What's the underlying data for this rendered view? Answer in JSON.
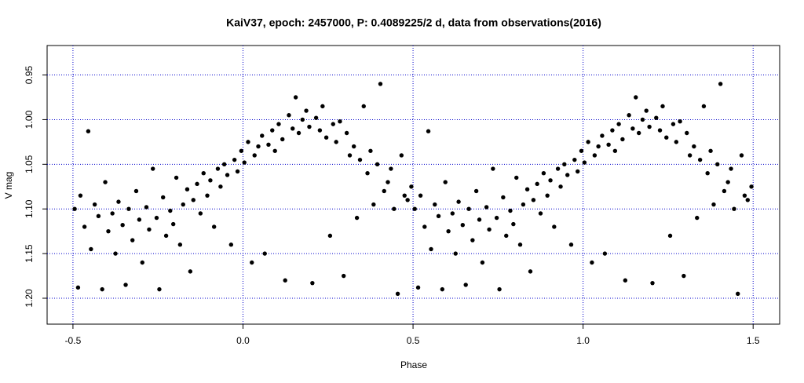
{
  "chart_data": {
    "type": "scatter",
    "title": "KaiV37, epoch: 2457000, P: 0.4089225/2 d, data from observations(2016)",
    "xlabel": "Phase",
    "ylabel": "V mag",
    "xlim": [
      -0.576,
      1.578
    ],
    "ylim": [
      1.229,
      0.917
    ],
    "xticks": [
      -0.5,
      {
        "value": 0,
        "label": "0.0"
      },
      0.5,
      {
        "value": 1,
        "label": "1.0"
      },
      1.5
    ],
    "yticks": [
      0.95,
      {
        "value": 1,
        "label": "1.00"
      },
      1.05,
      {
        "value": 1.1,
        "label": "1.10"
      },
      1.15,
      {
        "value": 1.2,
        "label": "1.20"
      }
    ],
    "grid": true,
    "grid_color": "#0000cc",
    "color": "#000000",
    "x": [
      -0.495,
      -0.485,
      -0.478,
      -0.466,
      -0.455,
      -0.447,
      -0.436,
      -0.425,
      -0.414,
      -0.405,
      -0.396,
      -0.384,
      -0.375,
      -0.366,
      -0.354,
      -0.345,
      -0.336,
      -0.325,
      -0.314,
      -0.305,
      -0.296,
      -0.284,
      -0.276,
      -0.265,
      -0.254,
      -0.246,
      -0.235,
      -0.226,
      -0.214,
      -0.205,
      -0.196,
      -0.185,
      -0.176,
      -0.164,
      -0.155,
      -0.146,
      -0.135,
      -0.125,
      -0.116,
      -0.105,
      -0.096,
      -0.085,
      -0.074,
      -0.066,
      -0.055,
      -0.046,
      -0.035,
      -0.025,
      -0.016,
      -0.005,
      0.004,
      0.015,
      0.026,
      0.034,
      0.045,
      0.056,
      0.064,
      0.075,
      0.086,
      0.094,
      0.105,
      0.116,
      0.124,
      0.135,
      0.146,
      0.155,
      0.164,
      0.175,
      0.186,
      0.195,
      0.204,
      0.215,
      0.226,
      0.234,
      0.245,
      0.256,
      0.265,
      0.274,
      0.285,
      0.296,
      0.305,
      0.314,
      0.326,
      0.335,
      0.344,
      0.355,
      0.366,
      0.375,
      0.384,
      0.395,
      0.404,
      0.415,
      0.426,
      0.435,
      0.444,
      0.455,
      0.466,
      0.475,
      0.484,
      0.495,
      0.505,
      0.515,
      0.522,
      0.534,
      0.545,
      0.553,
      0.564,
      0.575,
      0.586,
      0.595,
      0.604,
      0.616,
      0.625,
      0.634,
      0.646,
      0.655,
      0.664,
      0.675,
      0.686,
      0.695,
      0.704,
      0.716,
      0.724,
      0.735,
      0.746,
      0.754,
      0.765,
      0.774,
      0.786,
      0.795,
      0.804,
      0.815,
      0.824,
      0.836,
      0.845,
      0.854,
      0.865,
      0.875,
      0.884,
      0.895,
      0.904,
      0.915,
      0.926,
      0.934,
      0.945,
      0.954,
      0.965,
      0.975,
      0.984,
      0.995,
      1.004,
      1.015,
      1.026,
      1.034,
      1.045,
      1.056,
      1.064,
      1.075,
      1.086,
      1.094,
      1.105,
      1.116,
      1.124,
      1.135,
      1.146,
      1.155,
      1.164,
      1.175,
      1.186,
      1.195,
      1.204,
      1.215,
      1.226,
      1.234,
      1.245,
      1.256,
      1.265,
      1.274,
      1.285,
      1.296,
      1.305,
      1.314,
      1.326,
      1.335,
      1.344,
      1.355,
      1.366,
      1.375,
      1.384,
      1.395,
      1.404,
      1.415,
      1.426,
      1.435,
      1.444,
      1.455,
      1.466,
      1.475,
      1.484,
      1.495
    ],
    "values": [
      1.1,
      1.188,
      1.085,
      1.12,
      1.013,
      1.145,
      1.095,
      1.108,
      1.19,
      1.07,
      1.125,
      1.105,
      1.15,
      1.092,
      1.118,
      1.185,
      1.1,
      1.135,
      1.08,
      1.112,
      1.16,
      1.098,
      1.123,
      1.055,
      1.11,
      1.19,
      1.087,
      1.13,
      1.102,
      1.117,
      1.065,
      1.14,
      1.095,
      1.078,
      1.17,
      1.09,
      1.072,
      1.105,
      1.06,
      1.085,
      1.068,
      1.12,
      1.055,
      1.075,
      1.05,
      1.062,
      1.14,
      1.045,
      1.058,
      1.035,
      1.048,
      1.025,
      1.16,
      1.04,
      1.03,
      1.018,
      1.15,
      1.028,
      1.012,
      1.035,
      1.005,
      1.022,
      1.18,
      0.995,
      1.01,
      0.975,
      1.015,
      1.0,
      0.99,
      1.008,
      1.183,
      0.998,
      1.012,
      0.985,
      1.02,
      1.13,
      1.005,
      1.025,
      1.002,
      1.175,
      1.015,
      1.04,
      1.03,
      1.11,
      1.045,
      0.985,
      1.06,
      1.035,
      1.095,
      1.05,
      0.96,
      1.08,
      1.07,
      1.055,
      1.1,
      1.195,
      1.04,
      1.085,
      1.09,
      1.075,
      1.1,
      1.188,
      1.085,
      1.12,
      1.013,
      1.145,
      1.095,
      1.108,
      1.19,
      1.07,
      1.125,
      1.105,
      1.15,
      1.092,
      1.118,
      1.185,
      1.1,
      1.135,
      1.08,
      1.112,
      1.16,
      1.098,
      1.123,
      1.055,
      1.11,
      1.19,
      1.087,
      1.13,
      1.102,
      1.117,
      1.065,
      1.14,
      1.095,
      1.078,
      1.17,
      1.09,
      1.072,
      1.105,
      1.06,
      1.085,
      1.068,
      1.12,
      1.055,
      1.075,
      1.05,
      1.062,
      1.14,
      1.045,
      1.058,
      1.035,
      1.048,
      1.025,
      1.16,
      1.04,
      1.03,
      1.018,
      1.15,
      1.028,
      1.012,
      1.035,
      1.005,
      1.022,
      1.18,
      0.995,
      1.01,
      0.975,
      1.015,
      1.0,
      0.99,
      1.008,
      1.183,
      0.998,
      1.012,
      0.985,
      1.02,
      1.13,
      1.005,
      1.025,
      1.002,
      1.175,
      1.015,
      1.04,
      1.03,
      1.11,
      1.045,
      0.985,
      1.06,
      1.035,
      1.095,
      1.05,
      0.96,
      1.08,
      1.07,
      1.055,
      1.1,
      1.195,
      1.04,
      1.085,
      1.09,
      1.075
    ]
  }
}
